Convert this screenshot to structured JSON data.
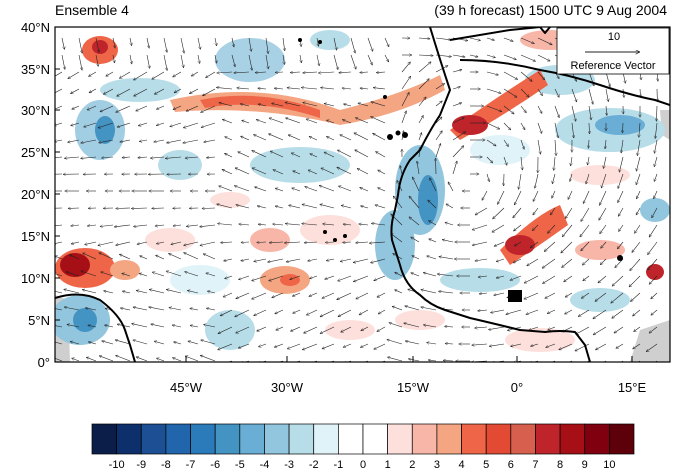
{
  "title_left": "Ensemble 4",
  "title_right": "(39 h forecast) 1500 UTC 9 Aug 2004",
  "lat_labels": [
    "40°N",
    "35°N",
    "30°N",
    "25°N",
    "20°N",
    "15°N",
    "10°N",
    "5°N",
    "0°"
  ],
  "lon_labels": [
    "45°W",
    "30°W",
    "15°W",
    "0°",
    "15°E"
  ],
  "reference_vector": {
    "value": "10",
    "label": "Reference Vector"
  },
  "colorbar": {
    "labels": [
      "-10",
      "-9",
      "-8",
      "-7",
      "-6",
      "-5",
      "-4",
      "-3",
      "-2",
      "-1",
      "0",
      "1",
      "2",
      "3",
      "4",
      "5",
      "6",
      "7",
      "8",
      "9",
      "10"
    ],
    "colors": [
      "#0b1e4a",
      "#0d2f6b",
      "#1c4f94",
      "#2166ac",
      "#2b7bba",
      "#4393c3",
      "#6aaed6",
      "#92c5de",
      "#b7dde9",
      "#e0f3f8",
      "#ffffff",
      "#ffffff",
      "#fde0dc",
      "#f7b6a8",
      "#f4a582",
      "#ef6548",
      "#e34a33",
      "#d6604d",
      "#c0242b",
      "#a50f15",
      "#800010",
      "#5e0009"
    ]
  }
}
